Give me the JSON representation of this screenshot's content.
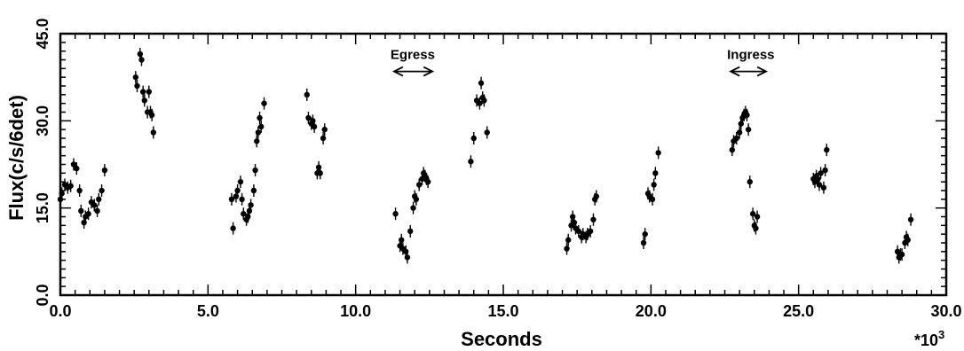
{
  "chart_data": {
    "type": "scatter",
    "xlabel": "Seconds",
    "ylabel": "Flux(c/s/6det)",
    "x_multiplier_label": "*10",
    "x_multiplier_exp": "3",
    "xlim": [
      0,
      30
    ],
    "ylim": [
      0,
      45
    ],
    "x_ticks": [
      "0.0",
      "5.0",
      "10.0",
      "15.0",
      "20.0",
      "25.0",
      "30.0"
    ],
    "y_ticks": [
      "0.0",
      "15.0",
      "30.0",
      "45.0"
    ],
    "grid": false,
    "error_bars": "vertical",
    "annotations": [
      {
        "label": "Egress",
        "x_from": 11.3,
        "x_to": 12.6,
        "y": 38.5,
        "arrow": "double"
      },
      {
        "label": "Ingress",
        "x_from": 22.7,
        "x_to": 23.9,
        "y": 38.5,
        "arrow": "double"
      }
    ],
    "points": [
      {
        "x": 0.0,
        "y": 16.5
      },
      {
        "x": 0.05,
        "y": 17.5
      },
      {
        "x": 0.15,
        "y": 19.0
      },
      {
        "x": 0.25,
        "y": 18.5
      },
      {
        "x": 0.35,
        "y": 18.8
      },
      {
        "x": 0.45,
        "y": 22.5
      },
      {
        "x": 0.55,
        "y": 21.8
      },
      {
        "x": 0.65,
        "y": 18.0
      },
      {
        "x": 0.7,
        "y": 14.5
      },
      {
        "x": 0.8,
        "y": 12.5
      },
      {
        "x": 0.85,
        "y": 13.5
      },
      {
        "x": 0.95,
        "y": 14.0
      },
      {
        "x": 1.05,
        "y": 16.0
      },
      {
        "x": 1.15,
        "y": 15.5
      },
      {
        "x": 1.25,
        "y": 14.5
      },
      {
        "x": 1.3,
        "y": 16.5
      },
      {
        "x": 1.4,
        "y": 18.0
      },
      {
        "x": 1.5,
        "y": 21.5
      },
      {
        "x": 2.55,
        "y": 37.5
      },
      {
        "x": 2.6,
        "y": 36.0
      },
      {
        "x": 2.7,
        "y": 41.5
      },
      {
        "x": 2.75,
        "y": 40.5
      },
      {
        "x": 2.8,
        "y": 35.0
      },
      {
        "x": 2.85,
        "y": 33.5
      },
      {
        "x": 2.95,
        "y": 31.5
      },
      {
        "x": 3.0,
        "y": 35.0
      },
      {
        "x": 3.05,
        "y": 31.5
      },
      {
        "x": 3.1,
        "y": 31.0
      },
      {
        "x": 3.15,
        "y": 28.0
      },
      {
        "x": 5.8,
        "y": 16.5
      },
      {
        "x": 5.85,
        "y": 11.5
      },
      {
        "x": 5.95,
        "y": 17.0
      },
      {
        "x": 6.0,
        "y": 18.0
      },
      {
        "x": 6.1,
        "y": 19.5
      },
      {
        "x": 6.15,
        "y": 16.5
      },
      {
        "x": 6.2,
        "y": 14.0
      },
      {
        "x": 6.3,
        "y": 13.0
      },
      {
        "x": 6.35,
        "y": 13.5
      },
      {
        "x": 6.4,
        "y": 14.5
      },
      {
        "x": 6.45,
        "y": 15.5
      },
      {
        "x": 6.55,
        "y": 18.0
      },
      {
        "x": 6.6,
        "y": 21.5
      },
      {
        "x": 6.65,
        "y": 26.5
      },
      {
        "x": 6.7,
        "y": 28.0
      },
      {
        "x": 6.75,
        "y": 30.5
      },
      {
        "x": 6.8,
        "y": 29.0
      },
      {
        "x": 6.9,
        "y": 33.0
      },
      {
        "x": 8.35,
        "y": 34.5
      },
      {
        "x": 8.4,
        "y": 30.5
      },
      {
        "x": 8.5,
        "y": 29.5
      },
      {
        "x": 8.55,
        "y": 30.0
      },
      {
        "x": 8.6,
        "y": 29.0
      },
      {
        "x": 8.7,
        "y": 21.0
      },
      {
        "x": 8.75,
        "y": 22.0
      },
      {
        "x": 8.8,
        "y": 21.0
      },
      {
        "x": 8.9,
        "y": 27.0
      },
      {
        "x": 8.95,
        "y": 28.5
      },
      {
        "x": 11.35,
        "y": 14.0
      },
      {
        "x": 11.5,
        "y": 8.5
      },
      {
        "x": 11.55,
        "y": 9.5
      },
      {
        "x": 11.6,
        "y": 8.0
      },
      {
        "x": 11.7,
        "y": 7.5
      },
      {
        "x": 11.75,
        "y": 6.5
      },
      {
        "x": 11.85,
        "y": 11.0
      },
      {
        "x": 11.95,
        "y": 15.0
      },
      {
        "x": 12.0,
        "y": 17.0
      },
      {
        "x": 12.05,
        "y": 16.5
      },
      {
        "x": 12.15,
        "y": 19.0
      },
      {
        "x": 12.25,
        "y": 20.0
      },
      {
        "x": 12.3,
        "y": 21.0
      },
      {
        "x": 12.35,
        "y": 20.5
      },
      {
        "x": 12.4,
        "y": 20.0
      },
      {
        "x": 12.45,
        "y": 19.5
      },
      {
        "x": 13.9,
        "y": 23.0
      },
      {
        "x": 14.0,
        "y": 27.0
      },
      {
        "x": 14.1,
        "y": 33.5
      },
      {
        "x": 14.2,
        "y": 33.0
      },
      {
        "x": 14.25,
        "y": 36.5
      },
      {
        "x": 14.3,
        "y": 34.0
      },
      {
        "x": 14.35,
        "y": 33.5
      },
      {
        "x": 14.45,
        "y": 28.0
      },
      {
        "x": 17.15,
        "y": 8.0
      },
      {
        "x": 17.2,
        "y": 9.5
      },
      {
        "x": 17.3,
        "y": 12.0
      },
      {
        "x": 17.35,
        "y": 13.5
      },
      {
        "x": 17.4,
        "y": 12.5
      },
      {
        "x": 17.45,
        "y": 11.5
      },
      {
        "x": 17.55,
        "y": 11.0
      },
      {
        "x": 17.65,
        "y": 10.0
      },
      {
        "x": 17.7,
        "y": 10.5
      },
      {
        "x": 17.8,
        "y": 10.0
      },
      {
        "x": 17.85,
        "y": 10.5
      },
      {
        "x": 17.95,
        "y": 11.0
      },
      {
        "x": 18.05,
        "y": 13.0
      },
      {
        "x": 18.1,
        "y": 16.5
      },
      {
        "x": 18.15,
        "y": 17.0
      },
      {
        "x": 19.75,
        "y": 9.0
      },
      {
        "x": 19.8,
        "y": 10.5
      },
      {
        "x": 19.9,
        "y": 17.5
      },
      {
        "x": 19.95,
        "y": 17.0
      },
      {
        "x": 20.05,
        "y": 16.5
      },
      {
        "x": 20.1,
        "y": 19.0
      },
      {
        "x": 20.15,
        "y": 21.0
      },
      {
        "x": 20.25,
        "y": 24.5
      },
      {
        "x": 22.75,
        "y": 25.0
      },
      {
        "x": 22.8,
        "y": 26.5
      },
      {
        "x": 22.9,
        "y": 27.0
      },
      {
        "x": 23.0,
        "y": 28.0
      },
      {
        "x": 23.05,
        "y": 29.5
      },
      {
        "x": 23.1,
        "y": 30.5
      },
      {
        "x": 23.15,
        "y": 31.0
      },
      {
        "x": 23.2,
        "y": 31.5
      },
      {
        "x": 23.25,
        "y": 31.0
      },
      {
        "x": 23.3,
        "y": 28.5
      },
      {
        "x": 23.35,
        "y": 19.5
      },
      {
        "x": 23.45,
        "y": 14.0
      },
      {
        "x": 23.5,
        "y": 12.0
      },
      {
        "x": 23.55,
        "y": 11.5
      },
      {
        "x": 23.6,
        "y": 13.5
      },
      {
        "x": 25.5,
        "y": 20.0
      },
      {
        "x": 25.55,
        "y": 19.5
      },
      {
        "x": 25.6,
        "y": 20.5
      },
      {
        "x": 25.65,
        "y": 20.0
      },
      {
        "x": 25.7,
        "y": 19.0
      },
      {
        "x": 25.75,
        "y": 21.0
      },
      {
        "x": 25.85,
        "y": 18.5
      },
      {
        "x": 25.9,
        "y": 21.5
      },
      {
        "x": 25.95,
        "y": 25.0
      },
      {
        "x": 28.35,
        "y": 7.5
      },
      {
        "x": 28.4,
        "y": 6.5
      },
      {
        "x": 28.45,
        "y": 7.0
      },
      {
        "x": 28.5,
        "y": 7.0
      },
      {
        "x": 28.6,
        "y": 9.0
      },
      {
        "x": 28.65,
        "y": 10.0
      },
      {
        "x": 28.7,
        "y": 9.5
      },
      {
        "x": 28.8,
        "y": 13.0
      }
    ]
  }
}
